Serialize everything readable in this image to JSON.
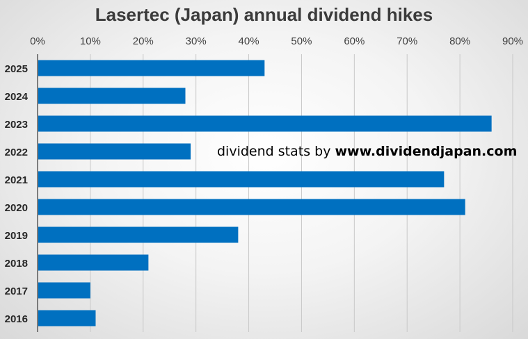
{
  "chart_data": {
    "type": "bar",
    "orientation": "horizontal",
    "title": "Lasertec (Japan) annual dividend hikes",
    "categories": [
      "2025",
      "2024",
      "2023",
      "2022",
      "2021",
      "2020",
      "2019",
      "2018",
      "2017",
      "2016"
    ],
    "values": [
      0.43,
      0.28,
      0.86,
      0.29,
      0.77,
      0.81,
      0.38,
      0.21,
      0.1,
      0.11
    ],
    "xlim": [
      0,
      0.9
    ],
    "xticks": [
      "0%",
      "10%",
      "20%",
      "30%",
      "40%",
      "50%",
      "60%",
      "70%",
      "80%",
      "90%"
    ],
    "x_axis_position": "top",
    "grid": "vertical",
    "bar_color": "#0070c0",
    "annotation": {
      "prefix": "dividend stats by ",
      "site": "www.dividendjapan.com"
    }
  }
}
